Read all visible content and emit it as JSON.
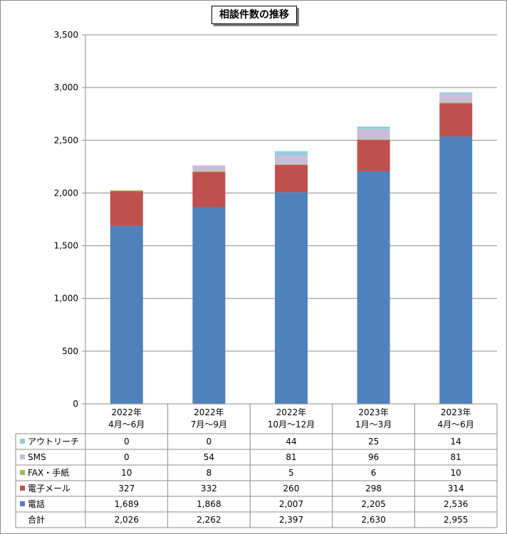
{
  "chart_data": {
    "type": "bar",
    "stacked": true,
    "title": "相談件数の推移",
    "categories": [
      [
        "2022年",
        "4月～6月"
      ],
      [
        "2022年",
        "7月～9月"
      ],
      [
        "2022年",
        "10月～12月"
      ],
      [
        "2023年",
        "1月～3月"
      ],
      [
        "2023年",
        "4月～6月"
      ]
    ],
    "ylim": [
      0,
      3500
    ],
    "yticks": [
      "0",
      "500",
      "1,000",
      "1,500",
      "2,000",
      "2,500",
      "3,000",
      "3,500"
    ],
    "grid": true,
    "series": [
      {
        "name": "電話",
        "color": "#4f81bd",
        "values": [
          1689,
          1868,
          2007,
          2205,
          2536
        ],
        "labels": [
          "1,689",
          "1,868",
          "2,007",
          "2,205",
          "2,536"
        ]
      },
      {
        "name": "電子メール",
        "color": "#c0504d",
        "values": [
          327,
          332,
          260,
          298,
          314
        ],
        "labels": [
          "327",
          "332",
          "260",
          "298",
          "314"
        ]
      },
      {
        "name": "FAX・手紙",
        "color": "#9bbb59",
        "values": [
          10,
          8,
          5,
          6,
          10
        ],
        "labels": [
          "10",
          "8",
          "5",
          "6",
          "10"
        ]
      },
      {
        "name": "SMS",
        "color": "#c8bed9",
        "values": [
          0,
          54,
          81,
          96,
          81
        ],
        "labels": [
          "0",
          "54",
          "81",
          "96",
          "81"
        ]
      },
      {
        "name": "アウトリーチ",
        "color": "#93cddd",
        "values": [
          0,
          0,
          44,
          25,
          14
        ],
        "labels": [
          "0",
          "0",
          "44",
          "25",
          "14"
        ]
      }
    ],
    "table_row_order": [
      "アウトリーチ",
      "SMS",
      "FAX・手紙",
      "電子メール",
      "電話"
    ],
    "total": {
      "name": "合計",
      "labels": [
        "2,026",
        "2,262",
        "2,397",
        "2,630",
        "2,955"
      ]
    }
  }
}
